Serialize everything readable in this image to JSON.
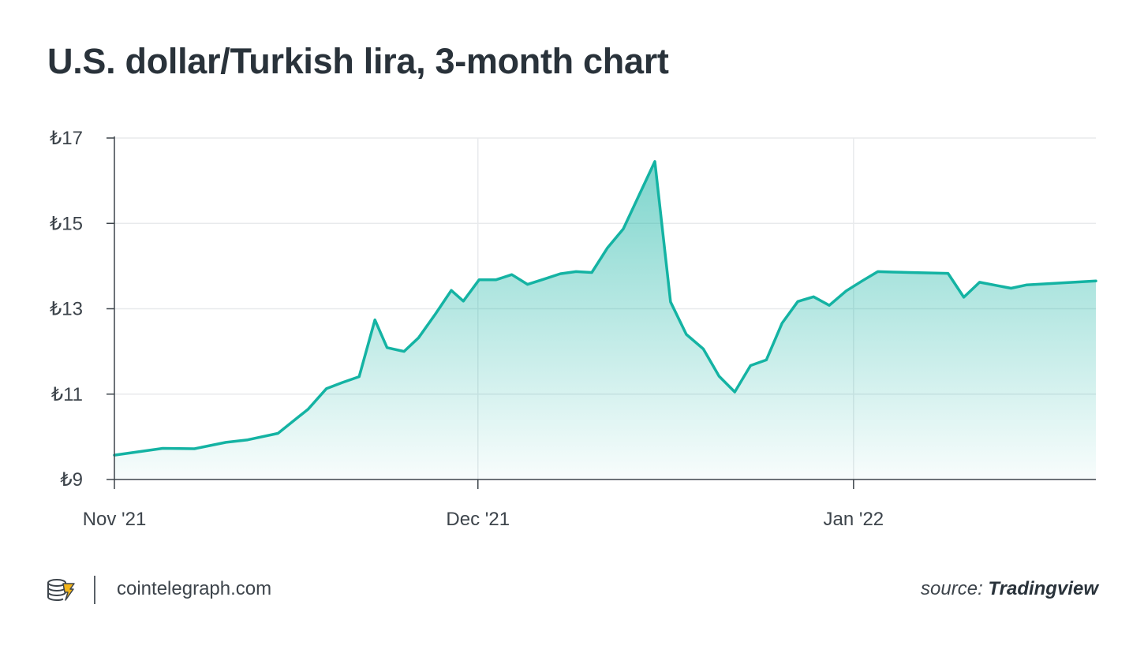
{
  "title": "U.S. dollar/Turkish lira, 3-month chart",
  "footer": {
    "site": "cointelegraph.com",
    "source_prefix": "source:",
    "source_name": "Tradingview"
  },
  "colors": {
    "line": "#14b3a3",
    "fill": "#14b3a3",
    "grid": "#e8eaec",
    "axis": "#3d444b",
    "logo": "#f2b418"
  },
  "chart_data": {
    "type": "area",
    "xlim": [
      0,
      81
    ],
    "ylim": [
      9,
      17
    ],
    "y_ticks": [
      9,
      11,
      13,
      15,
      17
    ],
    "y_tick_labels": [
      "₺9",
      "₺11",
      "₺13",
      "₺15",
      "₺17"
    ],
    "x_ticks": [
      0,
      30,
      61
    ],
    "x_tick_labels": [
      "Nov '21",
      "Dec '21",
      "Jan '22"
    ],
    "grid": true,
    "series": [
      {
        "x": [
          0,
          4,
          6.6,
          9.2,
          11,
          13.5,
          16,
          17.5,
          18.8,
          20.2,
          21.5,
          22.5,
          23.9,
          25.1,
          26.5,
          27.8,
          28.8,
          30.1,
          31.5,
          32.8,
          34.1,
          35.4,
          36.8,
          38.1,
          39.4,
          40.7,
          42,
          43.3,
          44.6,
          45.9,
          47.2,
          48.6,
          49.9,
          51.2,
          52.5,
          53.8,
          55.1,
          56.4,
          57.7,
          59,
          60.4,
          61.7,
          63,
          64.3,
          65.6,
          68.8,
          70.1,
          71.4,
          72.7,
          74,
          75.3,
          81
        ],
        "y": [
          9.57,
          9.73,
          9.72,
          9.87,
          9.93,
          10.08,
          10.65,
          11.13,
          11.27,
          11.41,
          12.74,
          12.09,
          12.0,
          12.32,
          12.88,
          13.43,
          13.18,
          13.68,
          13.68,
          13.8,
          13.57,
          13.69,
          13.82,
          13.87,
          13.85,
          14.43,
          14.87,
          15.66,
          16.45,
          13.16,
          12.4,
          12.06,
          11.42,
          11.05,
          11.67,
          11.8,
          12.66,
          13.17,
          13.28,
          13.08,
          13.42,
          13.65,
          13.87,
          13.86,
          13.85,
          13.83,
          13.27,
          13.62,
          13.55,
          13.48,
          13.56,
          13.65
        ]
      }
    ]
  }
}
